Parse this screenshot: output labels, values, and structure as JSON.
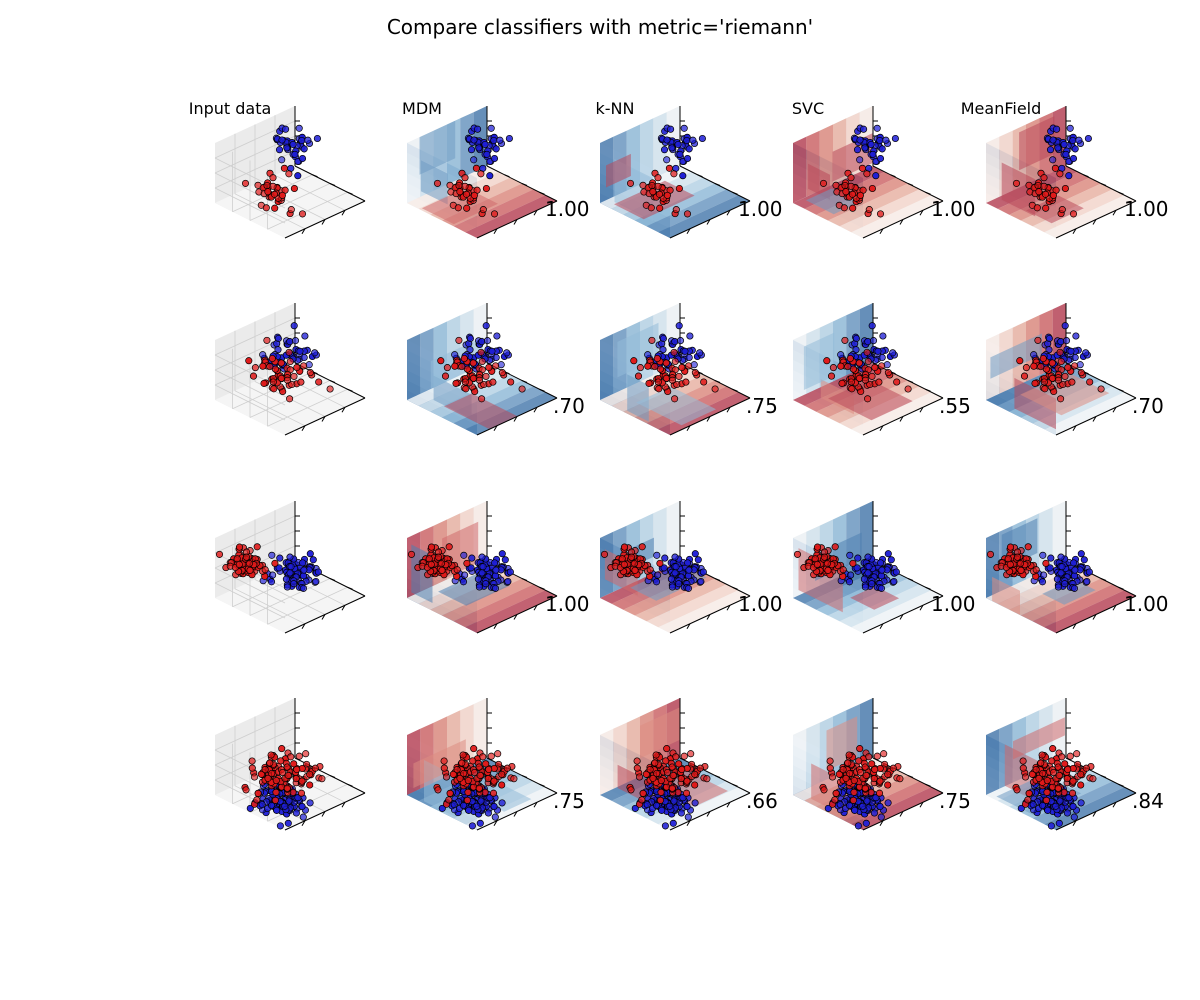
{
  "title": "Compare classifiers with metric='riemann'",
  "colors": {
    "red_class": "#d40000",
    "blue_class": "#0000d0",
    "red_region": "#b30d23",
    "blue_region": "#1a4f8a"
  },
  "chart_data": {
    "type": "scatter",
    "title": "Compare classifiers with metric='riemann'",
    "columns": [
      "Input data",
      "MDM",
      "k-NN",
      "SVC",
      "MeanField"
    ],
    "rows": [
      {
        "scores": [
          "",
          "1.00",
          "1.00",
          "1.00",
          "1.00"
        ]
      },
      {
        "scores": [
          "",
          ".70",
          ".75",
          ".55",
          ".70"
        ]
      },
      {
        "scores": [
          "",
          "1.00",
          "1.00",
          "1.00",
          "1.00"
        ]
      },
      {
        "scores": [
          "",
          ".75",
          ".66",
          ".75",
          ".84"
        ]
      }
    ],
    "series_colors": [
      "red",
      "blue"
    ],
    "grid": true,
    "legend": "none"
  }
}
